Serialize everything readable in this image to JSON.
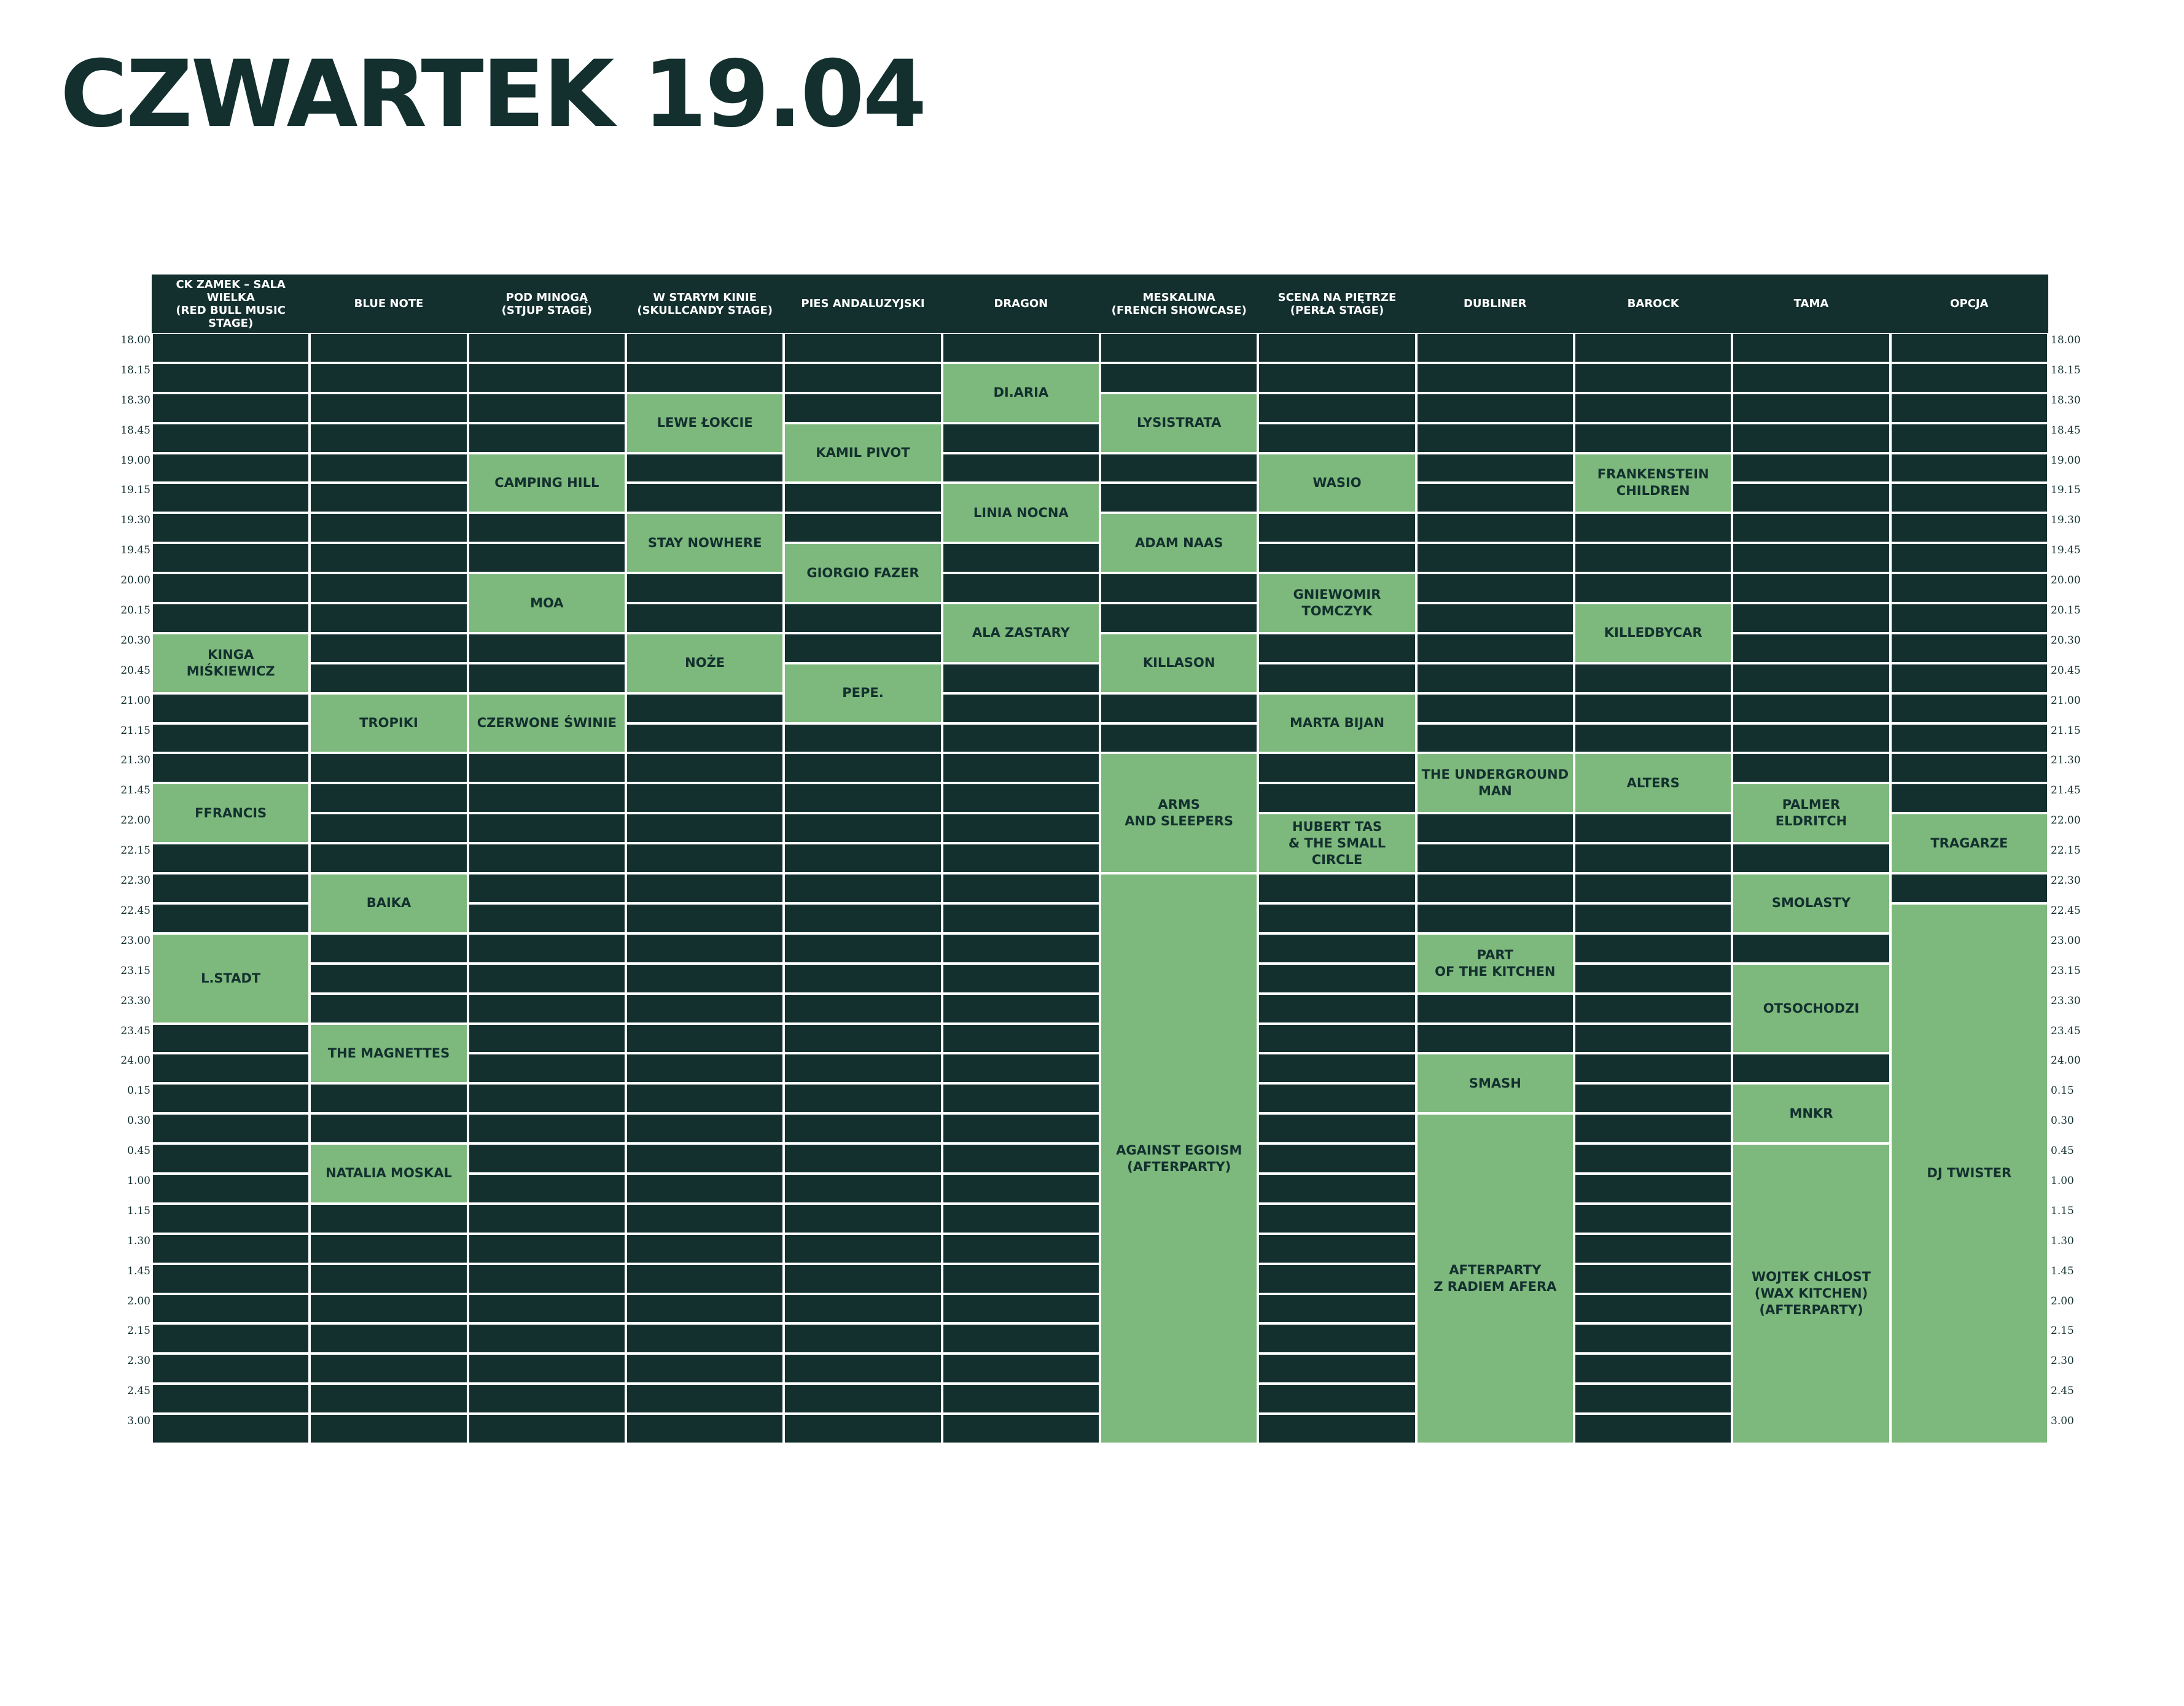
{
  "title": "CZWARTEK 19.04",
  "colors": {
    "dark": "#13302f",
    "green": "#7db87c",
    "white": "#ffffff"
  },
  "times": [
    "18.00",
    "18.15",
    "18.30",
    "18.45",
    "19.00",
    "19.15",
    "19.30",
    "19.45",
    "20.00",
    "20.15",
    "20.30",
    "20.45",
    "21.00",
    "21.15",
    "21.30",
    "21.45",
    "22.00",
    "22.15",
    "22.30",
    "22.45",
    "23.00",
    "23.15",
    "23.30",
    "23.45",
    "24.00",
    "0.15",
    "0.30",
    "0.45",
    "1.00",
    "1.15",
    "1.30",
    "1.45",
    "2.00",
    "2.15",
    "2.30",
    "2.45",
    "3.00"
  ],
  "stages": [
    {
      "name": "CK ZAMEK – SALA WIELKA\n(RED BULL MUSIC STAGE)",
      "slots": [
        {
          "label": "KINGA\nMIŚKIEWICZ",
          "start": "20.30",
          "end": "21.00"
        },
        {
          "label": "FFRANCIS",
          "start": "21.45",
          "end": "22.15"
        },
        {
          "label": "L.STADT",
          "start": "23.00",
          "end": "23.45"
        }
      ]
    },
    {
      "name": "BLUE NOTE",
      "slots": [
        {
          "label": "TROPIKI",
          "start": "21.00",
          "end": "21.30"
        },
        {
          "label": "BAIKA",
          "start": "22.30",
          "end": "23.00"
        },
        {
          "label": "THE MAGNETTES",
          "start": "23.45",
          "end": "0.15"
        },
        {
          "label": "NATALIA MOSKAL",
          "start": "0.45",
          "end": "1.15"
        }
      ]
    },
    {
      "name": "POD MINOGĄ\n(STJUP STAGE)",
      "slots": [
        {
          "label": "CAMPING HILL",
          "start": "19.00",
          "end": "19.30"
        },
        {
          "label": "MOA",
          "start": "20.00",
          "end": "20.30"
        },
        {
          "label": "CZERWONE ŚWINIE",
          "start": "21.00",
          "end": "21.30"
        }
      ]
    },
    {
      "name": "W STARYM KINIE\n(SKULLCANDY STAGE)",
      "slots": [
        {
          "label": "LEWE ŁOKCIE",
          "start": "18.30",
          "end": "19.00"
        },
        {
          "label": "STAY NOWHERE",
          "start": "19.30",
          "end": "20.00"
        },
        {
          "label": "NOŻE",
          "start": "20.30",
          "end": "21.00"
        }
      ]
    },
    {
      "name": "PIES ANDALUZYJSKI",
      "slots": [
        {
          "label": "KAMIL PIVOT",
          "start": "18.45",
          "end": "19.15"
        },
        {
          "label": "GIORGIO FAZER",
          "start": "19.45",
          "end": "20.15"
        },
        {
          "label": "PEPE.",
          "start": "20.45",
          "end": "21.15"
        }
      ]
    },
    {
      "name": "DRAGON",
      "slots": [
        {
          "label": "DI.ARIA",
          "start": "18.15",
          "end": "18.45"
        },
        {
          "label": "LINIA NOCNA",
          "start": "19.15",
          "end": "19.45"
        },
        {
          "label": "ALA ZASTARY",
          "start": "20.15",
          "end": "20.45"
        }
      ]
    },
    {
      "name": "MESKALINA\n(FRENCH SHOWCASE)",
      "slots": [
        {
          "label": "LYSISTRATA",
          "start": "18.30",
          "end": "19.00"
        },
        {
          "label": "ADAM NAAS",
          "start": "19.30",
          "end": "20.00"
        },
        {
          "label": "KILLASON",
          "start": "20.30",
          "end": "21.00"
        },
        {
          "label": "ARMS\nAND SLEEPERS",
          "start": "21.30",
          "end": "22.30"
        },
        {
          "label": "AGAINST EGOISM\n(AFTERPARTY)",
          "start": "22.30",
          "end": "3.15"
        }
      ]
    },
    {
      "name": "SCENA NA PIĘTRZE\n(PERŁA STAGE)",
      "slots": [
        {
          "label": "WASIO",
          "start": "19.00",
          "end": "19.30"
        },
        {
          "label": "GNIEWOMIR\nTOMCZYK",
          "start": "20.00",
          "end": "20.30"
        },
        {
          "label": "MARTA BIJAN",
          "start": "21.00",
          "end": "21.30"
        },
        {
          "label": "HUBERT TAS\n& THE SMALL CIRCLE",
          "start": "22.00",
          "end": "22.30"
        }
      ]
    },
    {
      "name": "DUBLINER",
      "slots": [
        {
          "label": "THE UNDERGROUND\nMAN",
          "start": "21.30",
          "end": "22.00"
        },
        {
          "label": "PART\nOF THE KITCHEN",
          "start": "23.00",
          "end": "23.30"
        },
        {
          "label": "SMASH",
          "start": "24.00",
          "end": "0.30"
        },
        {
          "label": "AFTERPARTY\nZ RADIEM AFERA",
          "start": "0.30",
          "end": "3.15"
        }
      ]
    },
    {
      "name": "BAROCK",
      "slots": [
        {
          "label": "FRANKENSTEIN\nCHILDREN",
          "start": "19.00",
          "end": "19.30"
        },
        {
          "label": "KILLEDBYCAR",
          "start": "20.15",
          "end": "20.45"
        },
        {
          "label": "ALTERS",
          "start": "21.30",
          "end": "22.00"
        }
      ]
    },
    {
      "name": "TAMA",
      "slots": [
        {
          "label": "PALMER\nELDRITCH",
          "start": "21.45",
          "end": "22.15"
        },
        {
          "label": "SMOLASTY",
          "start": "22.30",
          "end": "23.00"
        },
        {
          "label": "OTSOCHODZI",
          "start": "23.15",
          "end": "24.00"
        },
        {
          "label": "MNKR",
          "start": "0.15",
          "end": "0.45"
        },
        {
          "label": "WOJTEK CHLOST\n(WAX KITCHEN)\n(AFTERPARTY)",
          "start": "0.45",
          "end": "3.15"
        }
      ]
    },
    {
      "name": "OPCJA",
      "slots": [
        {
          "label": "TRAGARZE",
          "start": "22.00",
          "end": "22.30"
        },
        {
          "label": "DJ TWISTER",
          "start": "22.45",
          "end": "3.15"
        }
      ]
    }
  ]
}
